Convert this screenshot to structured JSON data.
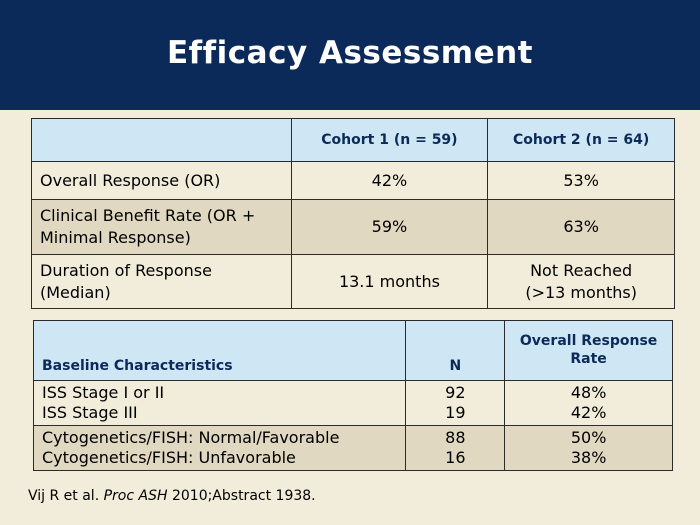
{
  "title": "Efficacy Assessment",
  "table1": {
    "headers": [
      "",
      "Cohort 1 (n = 59)",
      "Cohort 2 (n = 64)"
    ],
    "rows": [
      {
        "label": "Overall Response (OR)",
        "c1": "42%",
        "c2": "53%"
      },
      {
        "label_line1": "Clinical Benefit Rate (OR +",
        "label_line2": "Minimal Response)",
        "c1": "59%",
        "c2": "63%"
      },
      {
        "label_line1": "Duration of Response",
        "label_line2": "(Median)",
        "c1": "13.1 months",
        "c2_line1": "Not Reached",
        "c2_line2": "(>13 months)"
      }
    ]
  },
  "table2": {
    "headers": {
      "col1": "Baseline Characteristics",
      "col2": "N",
      "col3_line1": "Overall Response",
      "col3_line2": "Rate"
    },
    "groups": [
      {
        "rows": [
          {
            "label": "ISS Stage I or II",
            "n": "92",
            "rate": "48%"
          },
          {
            "label": "ISS Stage III",
            "n": "19",
            "rate": "42%"
          }
        ]
      },
      {
        "rows": [
          {
            "label": "Cytogenetics/FISH: Normal/Favorable",
            "n": "88",
            "rate": "50%"
          },
          {
            "label": "Cytogenetics/FISH: Unfavorable",
            "n": "16",
            "rate": "38%"
          }
        ]
      }
    ]
  },
  "footnote": {
    "before": "Vij R et al. ",
    "italic": "Proc ASH",
    "after": " 2010;Abstract 1938."
  },
  "colors": {
    "header_bg": "#0b2a5a",
    "table_header_bg": "#cfe6f5",
    "row_light": "#f2ecda",
    "row_dark": "#e0d8c0"
  }
}
